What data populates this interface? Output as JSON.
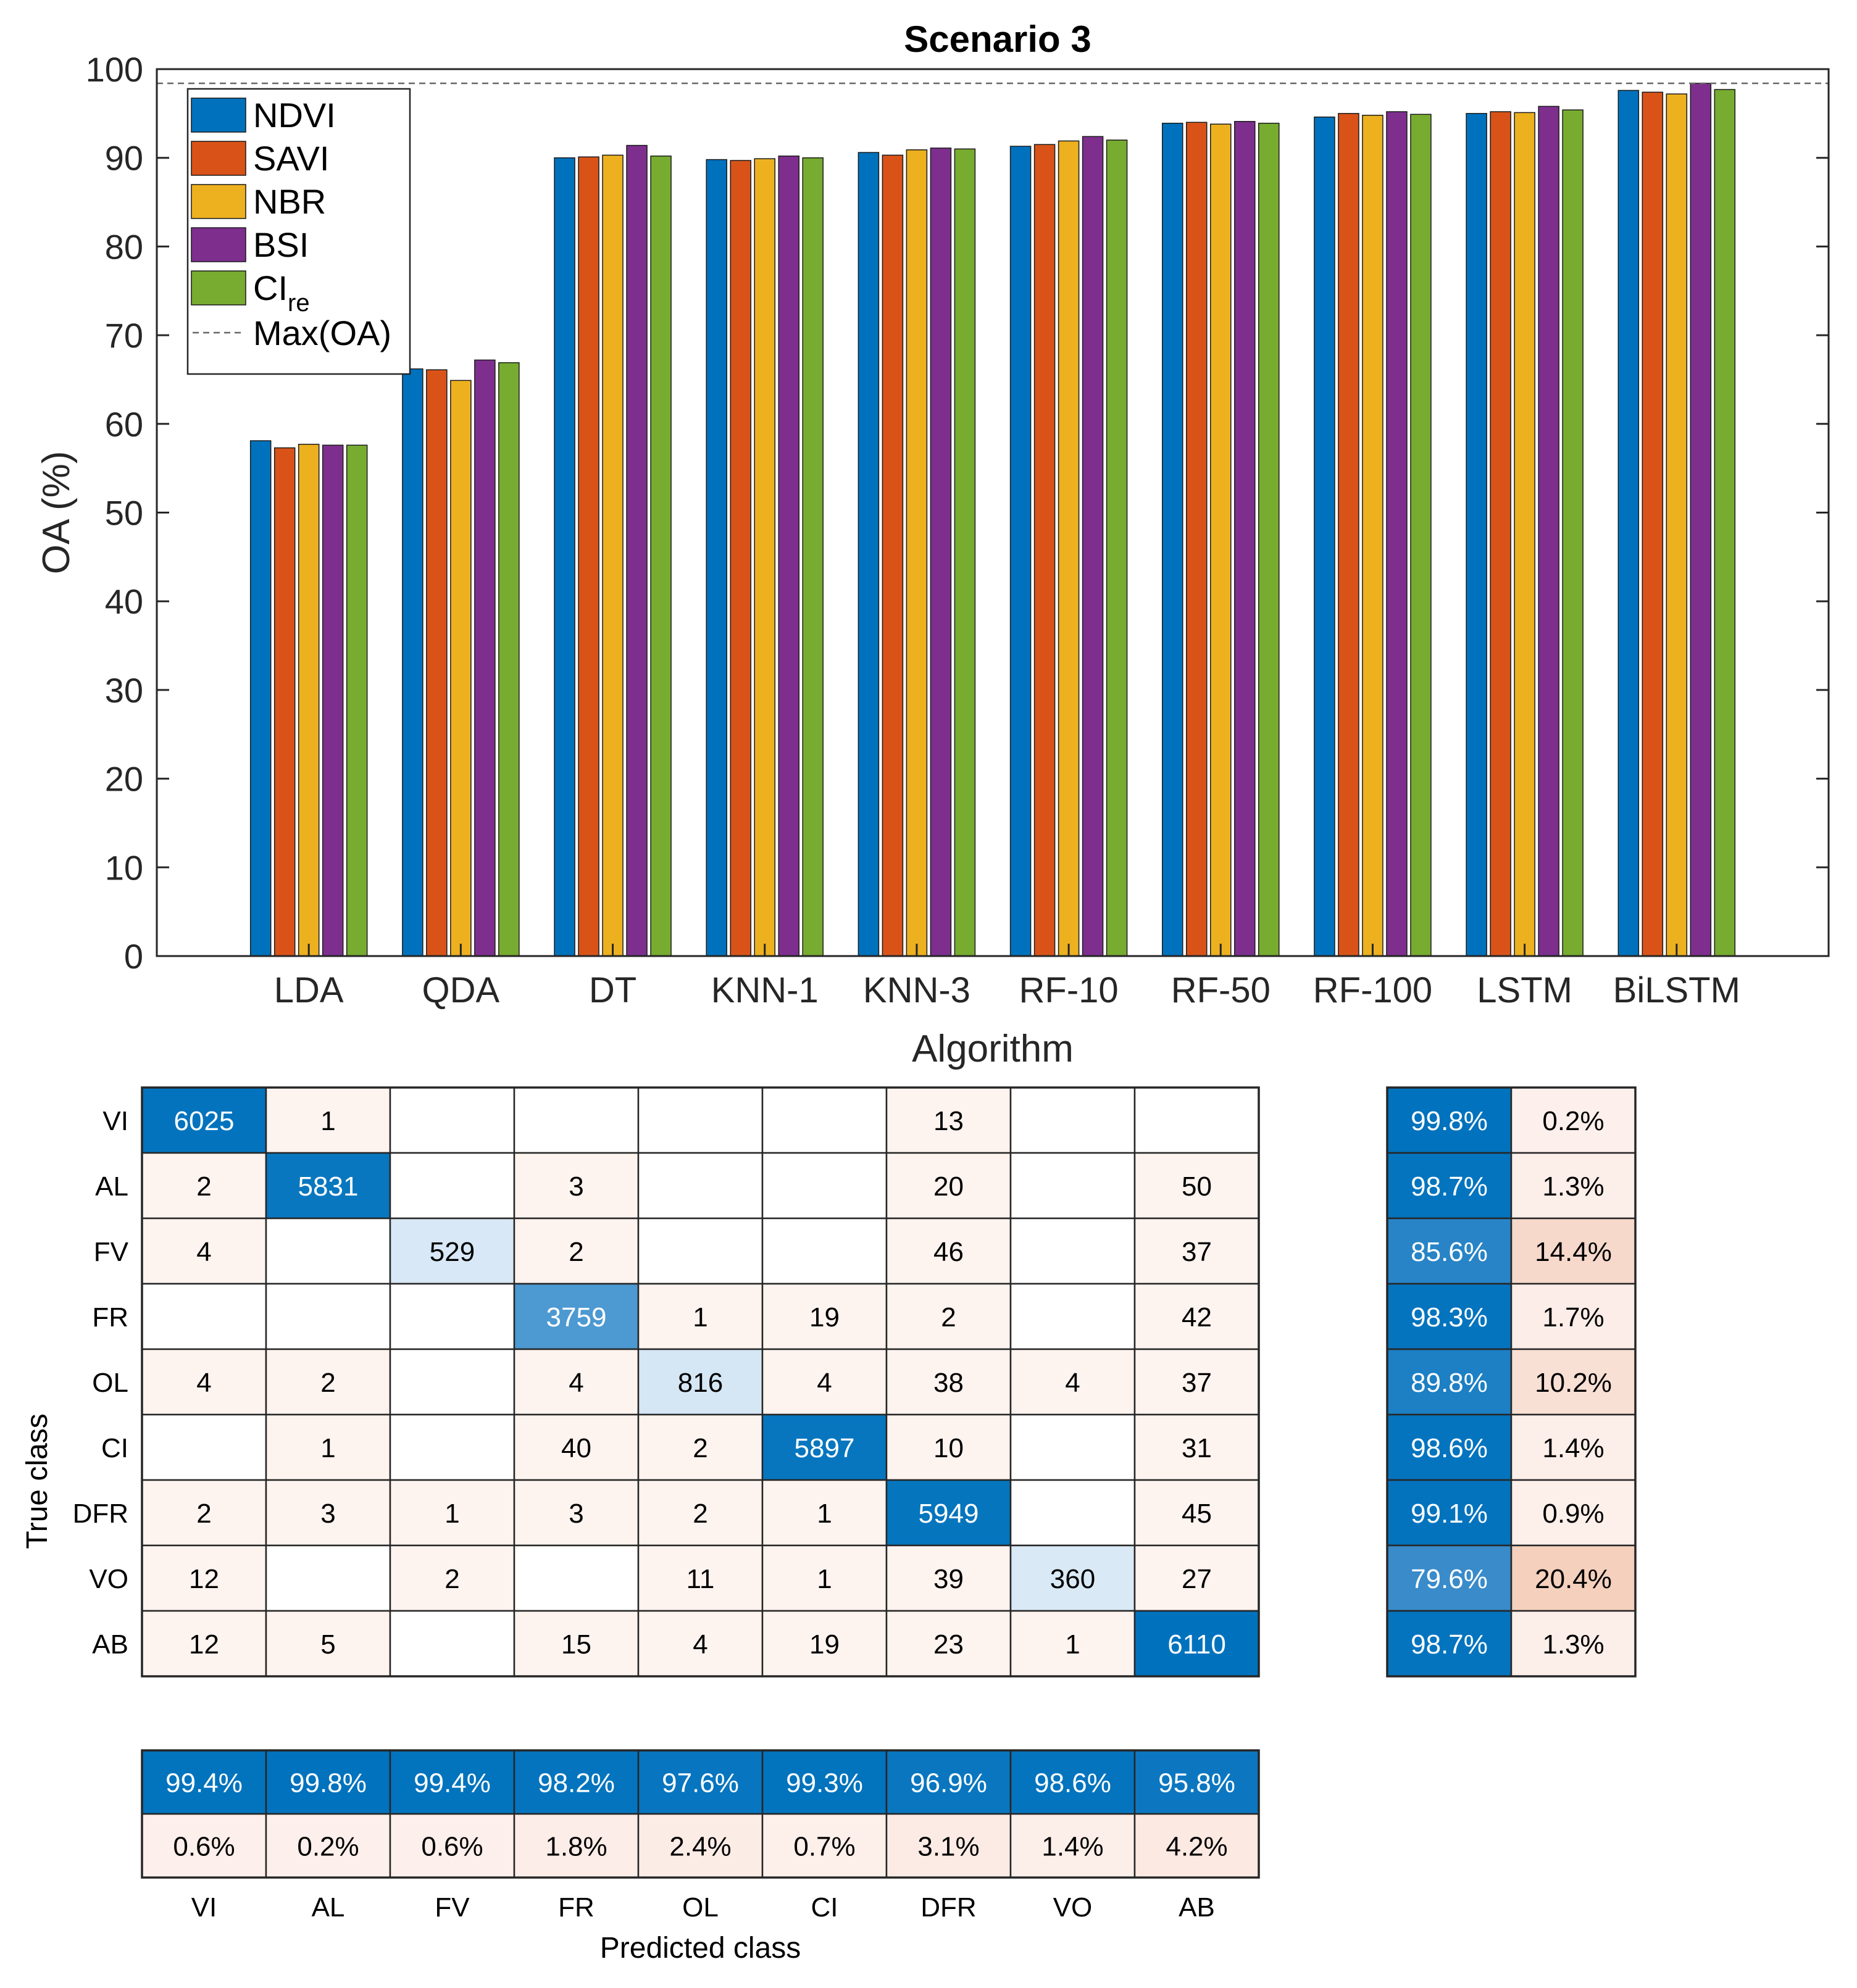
{
  "chart_data": [
    {
      "type": "bar",
      "title": "Scenario 3",
      "xlabel": "Algorithm",
      "ylabel": "OA (%)",
      "ylim": [
        0,
        100
      ],
      "yticks": [
        0,
        10,
        20,
        30,
        40,
        50,
        60,
        70,
        80,
        90,
        100
      ],
      "grid": false,
      "legend_position": "top-left",
      "categories": [
        "LDA",
        "QDA",
        "DT",
        "KNN-1",
        "KNN-3",
        "RF-10",
        "RF-50",
        "RF-100",
        "LSTM",
        "BiLSTM"
      ],
      "series": [
        {
          "name": "NDVI",
          "color": "#0072BD",
          "values": [
            58.1,
            66.2,
            90.0,
            89.8,
            90.6,
            91.3,
            93.9,
            94.6,
            95.0,
            97.6
          ]
        },
        {
          "name": "SAVI",
          "color": "#D95319",
          "values": [
            57.3,
            66.1,
            90.1,
            89.7,
            90.3,
            91.5,
            94.0,
            95.0,
            95.2,
            97.4
          ]
        },
        {
          "name": "NBR",
          "color": "#EDB120",
          "values": [
            57.7,
            64.9,
            90.3,
            89.9,
            90.9,
            91.9,
            93.8,
            94.8,
            95.1,
            97.2
          ]
        },
        {
          "name": "BSI",
          "color": "#7E2F8E",
          "values": [
            57.6,
            67.2,
            91.4,
            90.2,
            91.1,
            92.4,
            94.1,
            95.2,
            95.8,
            98.4
          ]
        },
        {
          "name": "CI",
          "name_subscript": "re",
          "color": "#77AC30",
          "values": [
            57.6,
            66.9,
            90.2,
            90.0,
            91.0,
            92.0,
            93.9,
            94.9,
            95.4,
            97.7
          ]
        }
      ],
      "reference_line": {
        "name": "Max(OA)",
        "value": 98.4,
        "color": "#666666"
      }
    },
    {
      "type": "heatmap",
      "title": "",
      "xlabel": "Predicted class",
      "ylabel": "True class",
      "classes": [
        "VI",
        "AL",
        "FV",
        "FR",
        "OL",
        "CI",
        "DFR",
        "VO",
        "AB"
      ],
      "matrix": [
        [
          6025,
          1,
          null,
          null,
          null,
          null,
          13,
          null,
          null
        ],
        [
          2,
          5831,
          null,
          3,
          null,
          null,
          20,
          null,
          50
        ],
        [
          4,
          null,
          529,
          2,
          null,
          null,
          46,
          null,
          37
        ],
        [
          null,
          null,
          null,
          3759,
          1,
          19,
          2,
          null,
          42
        ],
        [
          4,
          2,
          null,
          4,
          816,
          4,
          38,
          4,
          37
        ],
        [
          null,
          1,
          null,
          40,
          2,
          5897,
          10,
          null,
          31
        ],
        [
          2,
          3,
          1,
          3,
          2,
          1,
          5949,
          null,
          45
        ],
        [
          12,
          null,
          2,
          null,
          11,
          1,
          39,
          360,
          27
        ],
        [
          12,
          5,
          null,
          15,
          4,
          19,
          23,
          1,
          6110
        ]
      ],
      "row_summary_correct": [
        99.8,
        98.7,
        85.6,
        98.3,
        89.8,
        98.6,
        99.1,
        79.6,
        98.7
      ],
      "row_summary_incorrect": [
        0.2,
        1.3,
        14.4,
        1.7,
        10.2,
        1.4,
        0.9,
        20.4,
        1.3
      ],
      "col_summary_correct": [
        99.4,
        99.8,
        99.4,
        98.2,
        97.6,
        99.3,
        96.9,
        98.6,
        95.8
      ],
      "col_summary_incorrect": [
        0.6,
        0.2,
        0.6,
        1.8,
        2.4,
        0.7,
        3.1,
        1.4,
        4.2
      ]
    }
  ]
}
